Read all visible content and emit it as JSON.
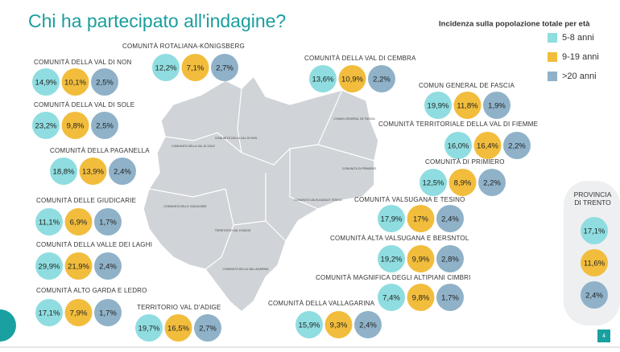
{
  "header": {
    "title": "Chi ha partecipato all'indagine?"
  },
  "legend": {
    "title": "Incidenza sulla popolazione totale per età",
    "items": [
      {
        "label": "5-8 anni",
        "color": "#8fdde0"
      },
      {
        "label": "9-19 anni",
        "color": "#f2bd3c"
      },
      {
        "label": ">20 anni",
        "color": "#8fb2c9"
      }
    ]
  },
  "communities": [
    {
      "name": "COMUNITÀ ROTALIANA-KÖNIGSBERG",
      "values": [
        "12,2%",
        "7,1%",
        "2,7%"
      ]
    },
    {
      "name": "COMUNITÀ DELLA VAL DI NON",
      "values": [
        "14,9%",
        "10,1%",
        "2,5%"
      ]
    },
    {
      "name": "COMUNITÀ DELLA VAL DI CEMBRA",
      "values": [
        "13,6%",
        "10,9%",
        "2,2%"
      ]
    },
    {
      "name": "COMUN GENERAL DE FASCIA",
      "values": [
        "19,9%",
        "11,8%",
        "1,9%"
      ]
    },
    {
      "name": "COMUNITÀ DELLA VAL DI SOLE",
      "values": [
        "23,2%",
        "9,8%",
        "2,5%"
      ]
    },
    {
      "name": "COMUNITÀ TERRITORIALE DELLA VAL DI FIEMME",
      "values": [
        "16,0%",
        "16,4%",
        "2,2%"
      ]
    },
    {
      "name": "COMUNITÀ DELLA PAGANELLA",
      "values": [
        "18,8%",
        "13,9%",
        "2,4%"
      ]
    },
    {
      "name": "COMUNITÀ DI PRIMIERO",
      "values": [
        "12,5%",
        "8,9%",
        "2,2%"
      ]
    },
    {
      "name": "COMUNITÀ DELLE GIUDICARIE",
      "values": [
        "11,1%",
        "6,9%",
        "1,7%"
      ]
    },
    {
      "name": "COMUNITÀ VALSUGANA E TESINO",
      "values": [
        "17,9%",
        "17%",
        "2,4%"
      ]
    },
    {
      "name": "COMUNITÀ DELLA VALLE DEI LAGHI",
      "values": [
        "29,9%",
        "21,9%",
        "2,4%"
      ]
    },
    {
      "name": "COMUNITÀ ALTA VALSUGANA E BERSNTOL",
      "values": [
        "19,2%",
        "9,9%",
        "2,8%"
      ]
    },
    {
      "name": "COMUNITÀ ALTO GARDA E LEDRO",
      "values": [
        "17,1%",
        "7,9%",
        "1,7%"
      ]
    },
    {
      "name": "COMUNITÀ MAGNIFICA DEGLI ALTIPIANI CIMBRI",
      "values": [
        "7,4%",
        "9,8%",
        "1,7%"
      ]
    },
    {
      "name": "TERRITORIO VAL D'ADIGE",
      "values": [
        "19,7%",
        "16,5%",
        "2,7%"
      ]
    },
    {
      "name": "COMUNITÀ DELLA VALLAGARINA",
      "values": [
        "15,9%",
        "9,3%",
        "2,4%"
      ]
    }
  ],
  "province": {
    "label": "PROVINCIA DI TRENTO",
    "values": [
      "17,1%",
      "11,6%",
      "2,4%"
    ]
  },
  "map_labels": [
    "COMUNITÀ DELLA VAL DI SOLE",
    "COMUNITÀ DELLA VAL DI NON",
    "COMUNITÀ DELLE GIUDICARIE",
    "COMUN GENERAL DE FASCIA",
    "COMUNITÀ DI PRIMIERO",
    "COMUNITÀ VALSUGANA E TESINO",
    "COMUNITÀ DELLA VALLAGARINA",
    "TERRITORIO VAL D'ADIGE"
  ],
  "page_number": "4"
}
